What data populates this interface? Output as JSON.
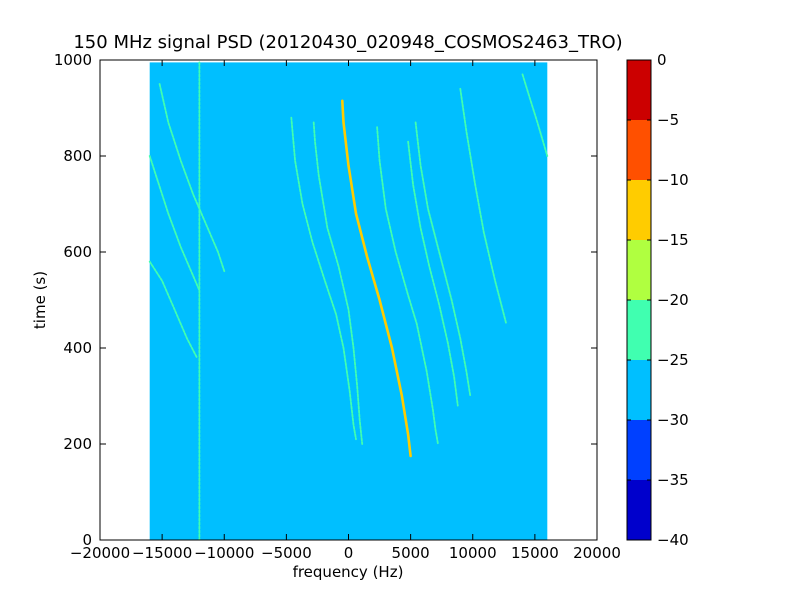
{
  "chart_data": {
    "type": "heatmap",
    "title": "150 MHz signal PSD (20120430_020948_COSMOS2463_TRO)",
    "xlabel": "frequency (Hz)",
    "ylabel": "time (s)",
    "xlim": [
      -20000,
      20000
    ],
    "ylim": [
      0,
      1000
    ],
    "xticks": [
      -20000,
      -15000,
      -10000,
      -5000,
      0,
      5000,
      10000,
      15000,
      20000
    ],
    "xtick_labels": [
      "−20000",
      "−15000",
      "−10000",
      "−5000",
      "0",
      "5000",
      "10000",
      "15000",
      "20000"
    ],
    "yticks": [
      0,
      200,
      400,
      600,
      800,
      1000
    ],
    "ytick_labels": [
      "0",
      "200",
      "400",
      "600",
      "800",
      "1000"
    ],
    "data_extent": {
      "x": [
        -16000,
        16000
      ],
      "y": [
        0,
        995
      ]
    },
    "background_level": -27.5,
    "colorbar": {
      "range": [
        -40,
        0
      ],
      "ticks": [
        0,
        -5,
        -10,
        -15,
        -20,
        -25,
        -30,
        -35,
        -40
      ],
      "tick_labels": [
        "0",
        "−5",
        "−10",
        "−15",
        "−20",
        "−25",
        "−30",
        "−35",
        "−40"
      ],
      "levels": [
        {
          "from": -40,
          "to": -35,
          "color": "#0000cc"
        },
        {
          "from": -35,
          "to": -30,
          "color": "#0040ff"
        },
        {
          "from": -30,
          "to": -25,
          "color": "#00bfff"
        },
        {
          "from": -25,
          "to": -20,
          "color": "#40ffb0"
        },
        {
          "from": -20,
          "to": -15,
          "color": "#b0ff40"
        },
        {
          "from": -15,
          "to": -10,
          "color": "#ffcc00"
        },
        {
          "from": -10,
          "to": -5,
          "color": "#ff5000"
        },
        {
          "from": -5,
          "to": 0,
          "color": "#cc0000"
        }
      ]
    },
    "traces": [
      {
        "level": -12,
        "points": [
          [
            -500,
            915
          ],
          [
            -400,
            870
          ],
          [
            0,
            780
          ],
          [
            600,
            680
          ],
          [
            1500,
            590
          ],
          [
            2500,
            500
          ],
          [
            3500,
            400
          ],
          [
            4300,
            300
          ],
          [
            4800,
            220
          ],
          [
            5000,
            175
          ]
        ]
      },
      {
        "level": -22,
        "points": [
          [
            -2800,
            870
          ],
          [
            -2700,
            830
          ],
          [
            -2400,
            760
          ],
          [
            -1700,
            650
          ],
          [
            -800,
            570
          ],
          [
            0,
            480
          ],
          [
            400,
            400
          ],
          [
            700,
            320
          ],
          [
            900,
            250
          ],
          [
            1100,
            200
          ]
        ]
      },
      {
        "level": -22,
        "points": [
          [
            -4600,
            880
          ],
          [
            -4300,
            790
          ],
          [
            -3700,
            700
          ],
          [
            -2900,
            620
          ],
          [
            -1900,
            540
          ],
          [
            -1000,
            470
          ],
          [
            -400,
            400
          ],
          [
            100,
            310
          ],
          [
            400,
            240
          ],
          [
            600,
            210
          ]
        ]
      },
      {
        "level": -22,
        "points": [
          [
            2300,
            860
          ],
          [
            2500,
            790
          ],
          [
            3000,
            690
          ],
          [
            3800,
            600
          ],
          [
            4800,
            510
          ],
          [
            5500,
            450
          ],
          [
            6300,
            350
          ],
          [
            6800,
            270
          ],
          [
            7000,
            230
          ],
          [
            7200,
            200
          ]
        ]
      },
      {
        "level": -22,
        "points": [
          [
            5400,
            870
          ],
          [
            5800,
            780
          ],
          [
            6400,
            690
          ],
          [
            7400,
            590
          ],
          [
            8300,
            500
          ],
          [
            9000,
            420
          ],
          [
            9500,
            350
          ],
          [
            9800,
            300
          ]
        ]
      },
      {
        "level": -22,
        "points": [
          [
            9000,
            940
          ],
          [
            9500,
            850
          ],
          [
            10200,
            740
          ],
          [
            10900,
            640
          ],
          [
            11800,
            540
          ],
          [
            12700,
            450
          ]
        ]
      },
      {
        "level": -22,
        "points": [
          [
            4800,
            830
          ],
          [
            5200,
            740
          ],
          [
            5800,
            650
          ],
          [
            6500,
            570
          ],
          [
            7300,
            490
          ],
          [
            8000,
            410
          ],
          [
            8500,
            340
          ],
          [
            8800,
            280
          ]
        ]
      },
      {
        "level": -22,
        "points": [
          [
            -16000,
            800
          ],
          [
            -15500,
            760
          ],
          [
            -14500,
            680
          ],
          [
            -13500,
            610
          ],
          [
            -12500,
            550
          ],
          [
            -12000,
            520
          ]
        ]
      },
      {
        "level": -24,
        "points": [
          [
            -15200,
            950
          ],
          [
            -14500,
            870
          ],
          [
            -13500,
            790
          ],
          [
            -12500,
            720
          ],
          [
            -11500,
            660
          ],
          [
            -10500,
            600
          ],
          [
            -10000,
            560
          ]
        ]
      },
      {
        "level": -24,
        "points": [
          [
            -16000,
            580
          ],
          [
            -15000,
            540
          ],
          [
            -14000,
            480
          ],
          [
            -13000,
            420
          ],
          [
            -12200,
            380
          ]
        ]
      },
      {
        "level": -22,
        "points": [
          [
            -12000,
            995
          ],
          [
            -12000,
            820
          ],
          [
            -12000,
            650
          ],
          [
            -12000,
            450
          ],
          [
            -12000,
            200
          ],
          [
            -12000,
            0
          ]
        ]
      },
      {
        "level": -22,
        "points": [
          [
            14000,
            970
          ],
          [
            14600,
            920
          ],
          [
            15200,
            870
          ],
          [
            16000,
            800
          ]
        ]
      }
    ]
  }
}
